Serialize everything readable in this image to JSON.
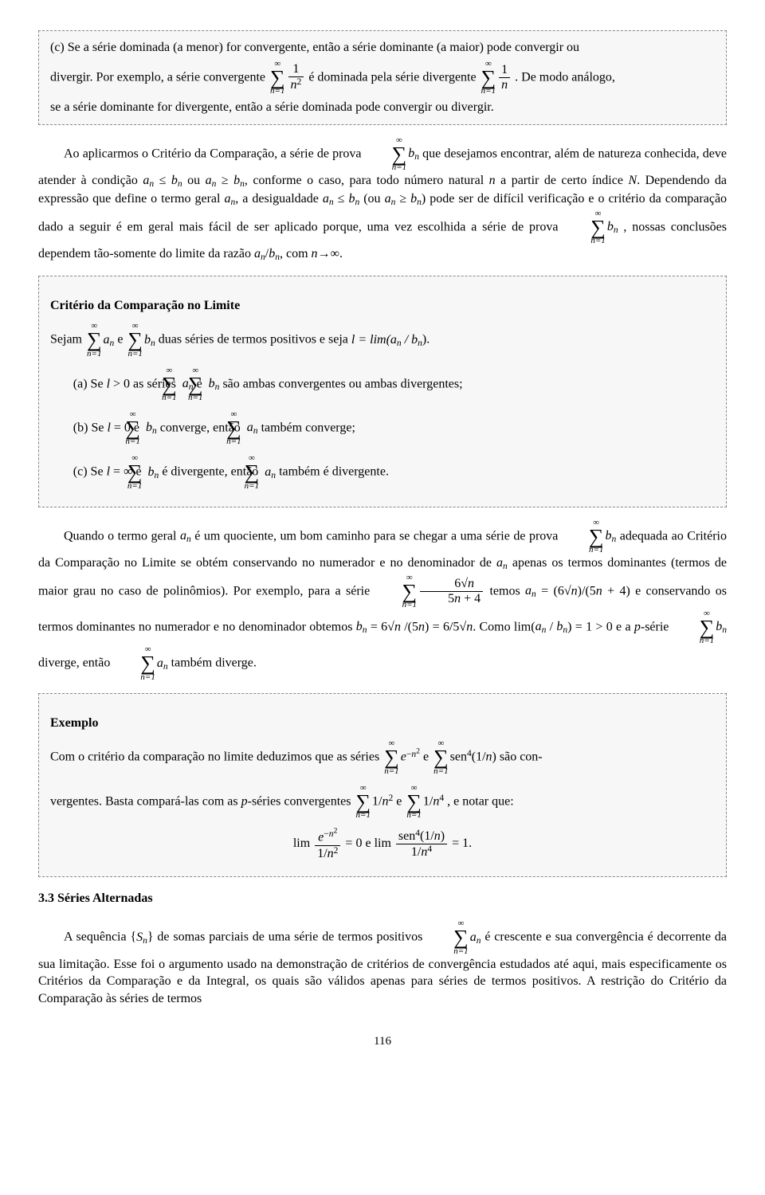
{
  "box1": {
    "line1a": "(c) Se a série dominada (a menor) for convergente, então a série dominante (a maior) pode convergir ou",
    "line2a": "divergir. Por exemplo, a série convergente ",
    "line2b": " é dominada pela série divergente ",
    "line2c": ". De modo análogo,",
    "line3": "se a série dominante for divergente, então a série dominada pode convergir ou divergir."
  },
  "para1": {
    "t1": "Ao aplicarmos o Critério da Comparação, a série de prova ",
    "t2": " que desejamos encontrar, além de natureza conhecida, deve atender à condição ",
    "cond1": "a",
    "t3": " ≤ ",
    "cond2": "b",
    "t4": " ou ",
    "cond3": "a",
    "t5": " ≥ ",
    "cond4": "b",
    "t6": ", conforme o caso, para todo número natural ",
    "nvar": "n",
    "t7": " a partir de certo índice ",
    "Nvar": "N",
    "t8": ". Dependendo da expressão que define o termo geral ",
    "an1": "a",
    "t9": ", a desigualdade ",
    "an2": "a",
    "t10": " ≤ ",
    "bn1": "b",
    "t11": " (ou ",
    "an3": "a",
    "t12": " ≥ ",
    "bn2": "b",
    "t13": ") pode ser de difícil verificação e o critério da comparação dado a seguir é em geral mais fácil de ser aplicado porque, uma vez escolhida a série de prova ",
    "t14": ", nossas conclusões dependem tão-somente do limite da razão ",
    "ratio": "a",
    "t15": "/",
    "ratio2": "b",
    "t16": ", com ",
    "nvar2": "n",
    "t17": "→∞."
  },
  "box2": {
    "title": "Critério da Comparação no Limite",
    "sejam": "Sejam ",
    "e": " e ",
    "duas": " duas séries de termos positivos e seja ",
    "ldef": "l = lim(a",
    "ldef2": " / b",
    "ldef3": ").",
    "a_pre": "(a) Se ",
    "a_l": "l",
    "a_gt": " > 0 as séries ",
    "a_e": " e ",
    "a_end": " são ambas convergentes ou ambas divergentes;",
    "b_pre": "(b) Se ",
    "b_l": "l",
    "b_eq": " = 0 e ",
    "b_conv": " converge, então ",
    "b_end": " também converge;",
    "c_pre": "(c) Se ",
    "c_l": "l",
    "c_eq": " = ∞ e ",
    "c_div": " é divergente, então ",
    "c_end": " também é divergente."
  },
  "para2": {
    "t1": "Quando o termo geral ",
    "an": "a",
    "t2": " é um quociente, um bom caminho para se chegar a uma série de prova ",
    "t3": " adequada ao Critério da Comparação no Limite se obtém conservando no numerador e no denominador de ",
    "an2": "a",
    "t4": " apenas os termos dominantes (termos de maior grau no caso de polinômios). Por exemplo, para a série ",
    "t5": " temos ",
    "eqa": "a",
    "eqa2": " = (6√",
    "eqa_n": "n",
    "eqa3": ")/(5",
    "eqa_n2": "n",
    "eqa4": " + 4) e conservando os termos dominantes no numerador e no denominador obtemos ",
    "eqb": "b",
    "eqb2": " = 6√",
    "eqb_n": "n",
    "eqb3": " /(5",
    "eqb_n2": "n",
    "eqb4": ") = 6/5√",
    "eqb_n3": "n",
    "eqb5": ". Como lim(",
    "eqc_a": "a",
    "eqc_sl": " / ",
    "eqc_b": "b",
    "eqc_end": ") = 1 > 0 e a ",
    "pserie": "p",
    "t6": "-série ",
    "t7": " diverge, então ",
    "t8": " também diverge."
  },
  "box3": {
    "title": "Exemplo",
    "t1": "Com o critério da comparação no limite deduzimos que as séries ",
    "e": " e ",
    "t2": " são con-",
    "t3": "vergentes. Basta compará-las com as ",
    "pser": "p",
    "t4": "-séries convergentes ",
    "e2": " e ",
    "t5": ", e notar que:",
    "lim1a": "lim",
    "eq0": " = 0",
    "e3": "   e   ",
    "lim2a": "lim",
    "eq1": " = 1."
  },
  "section33": "3.3 Séries Alternadas",
  "para3": {
    "t1": "A sequência {",
    "Sn": "S",
    "t2": "} de somas parciais de uma série de termos positivos ",
    "t3": " é crescente e sua convergência é decorrente da sua limitação. Esse foi o argumento usado na demonstração de critérios de convergência estudados até aqui, mais especificamente os Critérios da Comparação e da Integral, os quais são válidos apenas para séries de termos positivos. A restrição do Critério da Comparação às séries de termos"
  },
  "pagenum": "116"
}
